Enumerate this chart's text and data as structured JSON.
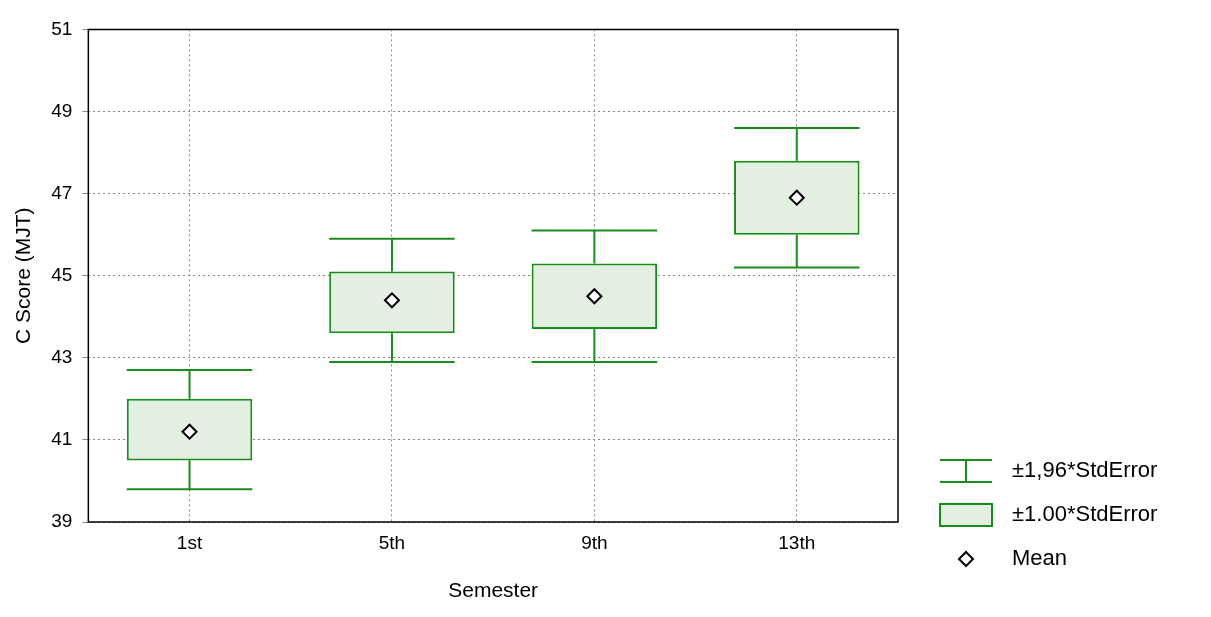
{
  "chart_data": {
    "type": "box",
    "xlabel": "Semester",
    "ylabel": "C Score (MJT)",
    "categories": [
      "1st",
      "5th",
      "9th",
      "13th"
    ],
    "series": [
      {
        "name": "±1.00*StdError",
        "color": "#1a8c1a",
        "boxes": [
          {
            "low": 39.8,
            "q1": 40.5,
            "q3": 42.0,
            "high": 42.7
          },
          {
            "low": 42.9,
            "q1": 43.6,
            "q3": 45.1,
            "high": 45.9
          },
          {
            "low": 42.9,
            "q1": 43.7,
            "q3": 45.3,
            "high": 46.1
          },
          {
            "low": 45.2,
            "q1": 46.0,
            "q3": 47.8,
            "high": 48.6
          }
        ]
      },
      {
        "name": "Mean",
        "type": "scatter",
        "color": "#000000",
        "marker": "diamond",
        "x": [
          "1st",
          "5th",
          "9th",
          "13th"
        ],
        "values": [
          41.2,
          44.4,
          44.5,
          46.9
        ]
      }
    ],
    "annotations": [
      "±1,96*StdError"
    ],
    "ylim": [
      39,
      51
    ],
    "yticks": [
      39,
      41,
      43,
      45,
      47,
      49,
      51
    ],
    "grid": true,
    "legend": "right"
  }
}
